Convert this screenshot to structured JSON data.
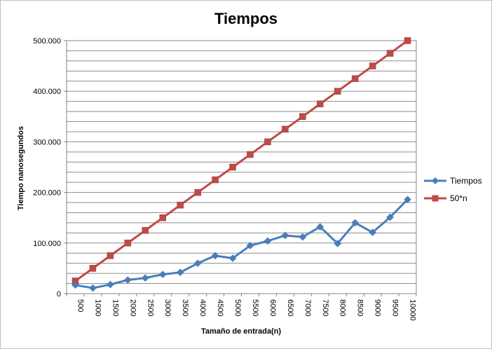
{
  "chart_data": {
    "type": "line",
    "title": "Tiempos",
    "xlabel": "Tamaño de entrada(n)",
    "ylabel": "Tiempo nanosegundos",
    "categories": [
      "500",
      "1000",
      "1500",
      "2000",
      "2500",
      "3000",
      "3500",
      "4000",
      "4500",
      "5000",
      "5500",
      "6000",
      "6500",
      "7000",
      "7500",
      "8000",
      "8500",
      "9000",
      "9500",
      "10000"
    ],
    "y_ticks": [
      "0",
      "100.000",
      "200.000",
      "300.000",
      "400.000",
      "500.000"
    ],
    "ylim": [
      0,
      500000
    ],
    "grid": true,
    "legend_position": "right",
    "series": [
      {
        "name": "Tiempos",
        "color": "#4a7ebb",
        "marker": "diamond",
        "values": [
          17000,
          11000,
          18000,
          27000,
          31000,
          38000,
          42000,
          60000,
          75000,
          70000,
          95000,
          104000,
          115000,
          112000,
          132000,
          99000,
          140000,
          121000,
          151000,
          186000
        ]
      },
      {
        "name": "50*n",
        "color": "#be4b48",
        "marker": "square",
        "values": [
          25000,
          50000,
          75000,
          100000,
          125000,
          150000,
          175000,
          200000,
          225000,
          250000,
          275000,
          300000,
          325000,
          350000,
          375000,
          400000,
          425000,
          450000,
          475000,
          500000
        ]
      }
    ]
  }
}
